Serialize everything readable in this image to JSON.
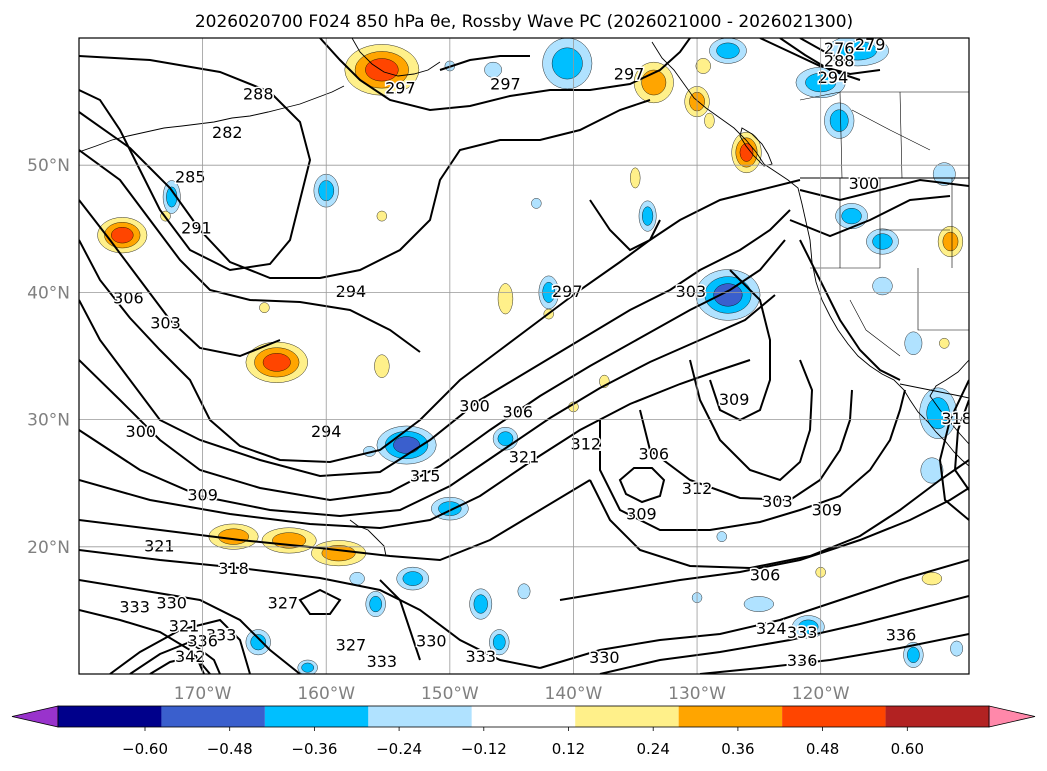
{
  "title": "2026020700 F024 850 hPa θe, Rossby Wave PC (2026021000 - 2026021300)",
  "map": {
    "projection": "equirectangular",
    "lon_range": [
      -180,
      -108
    ],
    "lat_range": [
      10,
      60
    ],
    "lon_ticks": [
      {
        "value": -170,
        "label": "170°W"
      },
      {
        "value": -160,
        "label": "160°W"
      },
      {
        "value": -150,
        "label": "150°W"
      },
      {
        "value": -140,
        "label": "140°W"
      },
      {
        "value": -130,
        "label": "130°W"
      },
      {
        "value": -120,
        "label": "120°W"
      }
    ],
    "lat_ticks": [
      {
        "value": 20,
        "label": "20°N"
      },
      {
        "value": 30,
        "label": "30°N"
      },
      {
        "value": 40,
        "label": "40°N"
      },
      {
        "value": 50,
        "label": "50°N"
      }
    ],
    "grid": true,
    "tick_label_color": "#808080"
  },
  "contours": {
    "variable": "850 hPa θe",
    "labels": [
      {
        "text": "288",
        "lon": -165.5,
        "lat": 55.5
      },
      {
        "text": "282",
        "lon": -168,
        "lat": 52.5
      },
      {
        "text": "285",
        "lon": -171,
        "lat": 49
      },
      {
        "text": "291",
        "lon": -170.5,
        "lat": 45
      },
      {
        "text": "306",
        "lon": -176,
        "lat": 39.5
      },
      {
        "text": "303",
        "lon": -173,
        "lat": 37.5
      },
      {
        "text": "300",
        "lon": -175,
        "lat": 29
      },
      {
        "text": "309",
        "lon": -170,
        "lat": 24
      },
      {
        "text": "321",
        "lon": -173.5,
        "lat": 20
      },
      {
        "text": "318",
        "lon": -167.5,
        "lat": 18.2
      },
      {
        "text": "333",
        "lon": -175.5,
        "lat": 15.2
      },
      {
        "text": "330",
        "lon": -172.5,
        "lat": 15.5
      },
      {
        "text": "321",
        "lon": -171.5,
        "lat": 13.7
      },
      {
        "text": "333",
        "lon": -168.5,
        "lat": 13
      },
      {
        "text": "336",
        "lon": -170,
        "lat": 12.5
      },
      {
        "text": "342",
        "lon": -171,
        "lat": 11.3
      },
      {
        "text": "327",
        "lon": -163.5,
        "lat": 15.5
      },
      {
        "text": "327",
        "lon": -158,
        "lat": 12.2
      },
      {
        "text": "333",
        "lon": -155.5,
        "lat": 10.9
      },
      {
        "text": "330",
        "lon": -151.5,
        "lat": 12.5
      },
      {
        "text": "333",
        "lon": -147.5,
        "lat": 11.3
      },
      {
        "text": "330",
        "lon": -137.5,
        "lat": 11.2
      },
      {
        "text": "297",
        "lon": -154,
        "lat": 56
      },
      {
        "text": "297",
        "lon": -145.5,
        "lat": 56.3
      },
      {
        "text": "297",
        "lon": -135.5,
        "lat": 57.1
      },
      {
        "text": "297",
        "lon": -140.5,
        "lat": 40
      },
      {
        "text": "294",
        "lon": -158,
        "lat": 40
      },
      {
        "text": "294",
        "lon": -160,
        "lat": 29
      },
      {
        "text": "300",
        "lon": -148,
        "lat": 31
      },
      {
        "text": "306",
        "lon": -144.5,
        "lat": 30.5
      },
      {
        "text": "315",
        "lon": -152,
        "lat": 25.5
      },
      {
        "text": "321",
        "lon": -144,
        "lat": 27
      },
      {
        "text": "312",
        "lon": -139,
        "lat": 28
      },
      {
        "text": "306",
        "lon": -133.5,
        "lat": 27.2
      },
      {
        "text": "309",
        "lon": -134.5,
        "lat": 22.5
      },
      {
        "text": "312",
        "lon": -130,
        "lat": 24.5
      },
      {
        "text": "309",
        "lon": -127,
        "lat": 31.5
      },
      {
        "text": "303",
        "lon": -130.5,
        "lat": 40
      },
      {
        "text": "303",
        "lon": -123.5,
        "lat": 23.5
      },
      {
        "text": "309",
        "lon": -119.5,
        "lat": 22.8
      },
      {
        "text": "306",
        "lon": -124.5,
        "lat": 17.7
      },
      {
        "text": "324",
        "lon": -124,
        "lat": 13.5
      },
      {
        "text": "333",
        "lon": -121.5,
        "lat": 13.2
      },
      {
        "text": "336",
        "lon": -121.5,
        "lat": 11
      },
      {
        "text": "336",
        "lon": -113.5,
        "lat": 13
      },
      {
        "text": "300",
        "lon": -116.5,
        "lat": 48.5
      },
      {
        "text": "318",
        "lon": -109,
        "lat": 30
      },
      {
        "text": "276",
        "lon": -118.5,
        "lat": 59.1
      },
      {
        "text": "279",
        "lon": -116,
        "lat": 59.4
      },
      {
        "text": "288",
        "lon": -118.5,
        "lat": 58.1
      },
      {
        "text": "294",
        "lon": -119,
        "lat": 56.8
      }
    ]
  },
  "anomaly_fill": {
    "variable": "Rossby Wave PC",
    "period": "2026021000 - 2026021300",
    "blobs": [
      {
        "lon": -176.5,
        "lat": 44.5,
        "rx": 2,
        "ry": 1.4,
        "v": 0.36
      },
      {
        "lon": -164,
        "lat": 34.5,
        "rx": 2.5,
        "ry": 1.6,
        "v": 0.42
      },
      {
        "lon": -167.5,
        "lat": 20.8,
        "rx": 2,
        "ry": 1,
        "v": 0.3
      },
      {
        "lon": -163,
        "lat": 20.5,
        "rx": 2.2,
        "ry": 1,
        "v": 0.32
      },
      {
        "lon": -159,
        "lat": 19.5,
        "rx": 2.2,
        "ry": 1,
        "v": 0.3
      },
      {
        "lon": -155.5,
        "lat": 57.5,
        "rx": 3,
        "ry": 2,
        "v": 0.42
      },
      {
        "lon": -133.5,
        "lat": 56.5,
        "rx": 1.6,
        "ry": 1.6,
        "v": 0.32
      },
      {
        "lon": -130,
        "lat": 55,
        "rx": 1,
        "ry": 1.2,
        "v": 0.3
      },
      {
        "lon": -126,
        "lat": 51,
        "rx": 1.2,
        "ry": 1.6,
        "v": 0.38
      },
      {
        "lon": -109.5,
        "lat": 44,
        "rx": 1,
        "ry": 1.2,
        "v": 0.3
      },
      {
        "lon": -155.5,
        "lat": 34.2,
        "rx": 0.6,
        "ry": 0.9,
        "v": 0.2
      },
      {
        "lon": -145.5,
        "lat": 39.5,
        "rx": 0.6,
        "ry": 1.2,
        "v": 0.2
      },
      {
        "lon": -137.5,
        "lat": 33,
        "rx": 0.4,
        "ry": 0.5,
        "v": 0.18
      },
      {
        "lon": -129,
        "lat": 53.5,
        "rx": 0.4,
        "ry": 0.6,
        "v": 0.16
      },
      {
        "lon": -129.5,
        "lat": 57.8,
        "rx": 0.6,
        "ry": 0.6,
        "v": 0.2
      },
      {
        "lon": -173,
        "lat": 46,
        "rx": 0.4,
        "ry": 0.4,
        "v": 0.16
      },
      {
        "lon": -155.5,
        "lat": 46,
        "rx": 0.4,
        "ry": 0.4,
        "v": 0.16
      },
      {
        "lon": -165,
        "lat": 38.8,
        "rx": 0.4,
        "ry": 0.4,
        "v": 0.16
      },
      {
        "lon": -142,
        "lat": 38.3,
        "rx": 0.4,
        "ry": 0.4,
        "v": 0.16
      },
      {
        "lon": -120,
        "lat": 18,
        "rx": 0.4,
        "ry": 0.4,
        "v": 0.16
      },
      {
        "lon": -111,
        "lat": 17.5,
        "rx": 0.8,
        "ry": 0.5,
        "v": 0.2
      },
      {
        "lon": -135,
        "lat": 49,
        "rx": 0.4,
        "ry": 0.8,
        "v": 0.16
      },
      {
        "lon": -110,
        "lat": 36,
        "rx": 0.4,
        "ry": 0.4,
        "v": 0.14
      },
      {
        "lon": -140,
        "lat": 31,
        "rx": 0.4,
        "ry": 0.4,
        "v": 0.16
      },
      {
        "lon": -153.5,
        "lat": 28,
        "rx": 2.4,
        "ry": 1.5,
        "v": -0.42
      },
      {
        "lon": -127.5,
        "lat": 39.8,
        "rx": 2.6,
        "ry": 2,
        "v": -0.44
      },
      {
        "lon": -150,
        "lat": 23,
        "rx": 1.5,
        "ry": 0.9,
        "v": -0.3
      },
      {
        "lon": -153,
        "lat": 17.5,
        "rx": 1.3,
        "ry": 0.9,
        "v": -0.3
      },
      {
        "lon": -156,
        "lat": 15.5,
        "rx": 0.8,
        "ry": 1,
        "v": -0.26
      },
      {
        "lon": -145.5,
        "lat": 28.5,
        "rx": 1,
        "ry": 0.9,
        "v": -0.26
      },
      {
        "lon": -147.5,
        "lat": 15.5,
        "rx": 0.9,
        "ry": 1.2,
        "v": -0.26
      },
      {
        "lon": -165.5,
        "lat": 12.5,
        "rx": 1,
        "ry": 1,
        "v": -0.28
      },
      {
        "lon": -172.5,
        "lat": 47.5,
        "rx": 0.7,
        "ry": 1.3,
        "v": -0.24
      },
      {
        "lon": -160,
        "lat": 48,
        "rx": 1,
        "ry": 1.3,
        "v": -0.26
      },
      {
        "lon": -140.5,
        "lat": 58,
        "rx": 2,
        "ry": 2,
        "v": -0.3
      },
      {
        "lon": -146.5,
        "lat": 57.5,
        "rx": 0.7,
        "ry": 0.6,
        "v": -0.2
      },
      {
        "lon": -150,
        "lat": 57.8,
        "rx": 0.4,
        "ry": 0.4,
        "v": -0.16
      },
      {
        "lon": -142,
        "lat": 40,
        "rx": 0.8,
        "ry": 1.3,
        "v": -0.26
      },
      {
        "lon": -134,
        "lat": 46,
        "rx": 0.7,
        "ry": 1.2,
        "v": -0.24
      },
      {
        "lon": -117.5,
        "lat": 46,
        "rx": 1.3,
        "ry": 1,
        "v": -0.26
      },
      {
        "lon": -115,
        "lat": 44,
        "rx": 1.3,
        "ry": 1,
        "v": -0.26
      },
      {
        "lon": -115,
        "lat": 40.5,
        "rx": 0.8,
        "ry": 0.7,
        "v": -0.2
      },
      {
        "lon": -112.5,
        "lat": 36,
        "rx": 0.7,
        "ry": 0.9,
        "v": -0.2
      },
      {
        "lon": -110.5,
        "lat": 30.5,
        "rx": 1.5,
        "ry": 2,
        "v": -0.28
      },
      {
        "lon": -111,
        "lat": 26,
        "rx": 0.9,
        "ry": 1,
        "v": -0.22
      },
      {
        "lon": -110,
        "lat": 49.3,
        "rx": 0.9,
        "ry": 0.9,
        "v": -0.22
      },
      {
        "lon": -118.5,
        "lat": 53.5,
        "rx": 1.2,
        "ry": 1.4,
        "v": -0.26
      },
      {
        "lon": -117,
        "lat": 59,
        "rx": 2.5,
        "ry": 1.2,
        "v": -0.3
      },
      {
        "lon": -127.5,
        "lat": 59,
        "rx": 1.5,
        "ry": 1,
        "v": -0.26
      },
      {
        "lon": -120,
        "lat": 56.5,
        "rx": 2,
        "ry": 1.2,
        "v": -0.26
      },
      {
        "lon": -121,
        "lat": 13.7,
        "rx": 1.3,
        "ry": 0.9,
        "v": -0.3
      },
      {
        "lon": -125,
        "lat": 15.5,
        "rx": 1.2,
        "ry": 0.6,
        "v": -0.22
      },
      {
        "lon": -112.5,
        "lat": 11.5,
        "rx": 0.8,
        "ry": 1,
        "v": -0.24
      },
      {
        "lon": -109,
        "lat": 12,
        "rx": 0.5,
        "ry": 0.6,
        "v": -0.22
      },
      {
        "lon": -146,
        "lat": 12.5,
        "rx": 0.8,
        "ry": 1,
        "v": -0.24
      },
      {
        "lon": -144,
        "lat": 16.5,
        "rx": 0.5,
        "ry": 0.6,
        "v": -0.2
      },
      {
        "lon": -157.5,
        "lat": 17.5,
        "rx": 0.6,
        "ry": 0.5,
        "v": -0.2
      },
      {
        "lon": -161.5,
        "lat": 10.5,
        "rx": 0.8,
        "ry": 0.6,
        "v": -0.24
      },
      {
        "lon": -130,
        "lat": 16,
        "rx": 0.4,
        "ry": 0.4,
        "v": -0.16
      },
      {
        "lon": -128,
        "lat": 20.8,
        "rx": 0.4,
        "ry": 0.4,
        "v": -0.16
      },
      {
        "lon": -143,
        "lat": 47,
        "rx": 0.4,
        "ry": 0.4,
        "v": -0.16
      },
      {
        "lon": -156.5,
        "lat": 27.5,
        "rx": 0.5,
        "ry": 0.4,
        "v": -0.18
      }
    ]
  },
  "colorbar": {
    "boundaries": [
      -0.7,
      -0.6,
      -0.48,
      -0.36,
      -0.24,
      -0.12,
      0.12,
      0.24,
      0.36,
      0.48,
      0.6,
      0.7
    ],
    "colors": [
      "#9933cc",
      "#00008b",
      "#3a5fcd",
      "#00bfff",
      "#b0e2ff",
      "#ffffff",
      "#fff08a",
      "#ffa500",
      "#ff4500",
      "#b22222",
      "#ff88aa"
    ],
    "under_color": "#9933cc",
    "over_color": "#ff88aa",
    "tick_labels": [
      "−0.60",
      "−0.48",
      "−0.36",
      "−0.24",
      "−0.12",
      "0.12",
      "0.24",
      "0.36",
      "0.48",
      "0.60"
    ],
    "extend": "both"
  }
}
